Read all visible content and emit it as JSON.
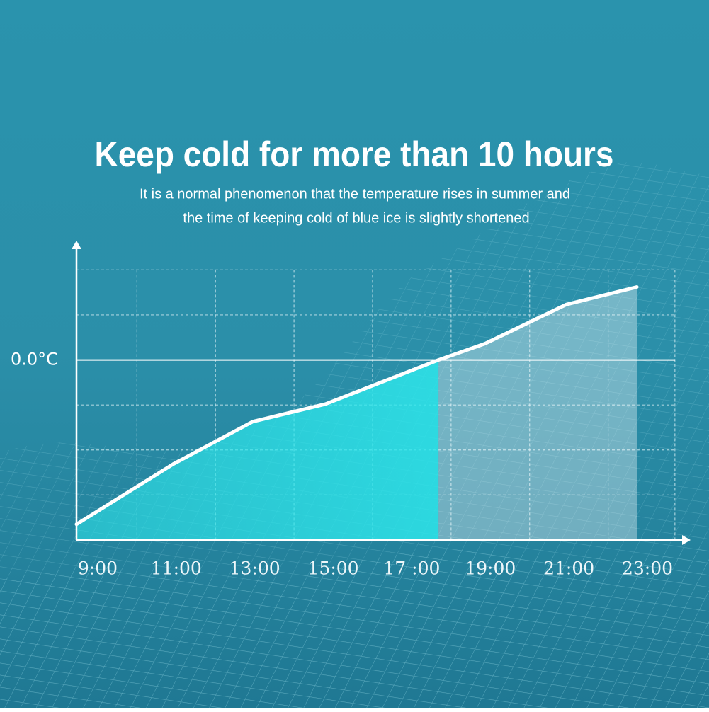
{
  "chart_data": {
    "type": "line",
    "title": "Keep cold for more than 10 hours",
    "subtitle": [
      "It is a normal phenomenon that the temperature rises in summer and",
      "the time of keeping cold of blue ice is slightly shortened"
    ],
    "x": [
      8.46,
      10.93,
      12.95,
      14.8,
      17.68,
      18.86,
      20.93,
      22.73
    ],
    "values": [
      -3.65,
      -2.31,
      -1.37,
      -0.98,
      0,
      0.36,
      1.23,
      1.62
    ],
    "color": "#ffffff",
    "fill_below": "#2ee8ec",
    "fill_above": "#ffffff",
    "xlim": [
      8.46,
      24.1
    ],
    "ylim": [
      -4,
      2.65
    ],
    "xticks": [
      {
        "value": 9,
        "label": "9:00"
      },
      {
        "value": 11,
        "label": "11:00"
      },
      {
        "value": 13,
        "label": "13:00"
      },
      {
        "value": 15,
        "label": "15:00"
      },
      {
        "value": 17,
        "label": "17 :00"
      },
      {
        "value": 19,
        "label": "19:00"
      },
      {
        "value": 21,
        "label": "21:00"
      },
      {
        "value": 23,
        "label": "23:00"
      }
    ],
    "yticks": [
      {
        "value": 0,
        "label": "0.0°C"
      }
    ],
    "xgrid": [
      10,
      12,
      14,
      16,
      18,
      20,
      22,
      23.7
    ],
    "ygrid": [
      -3,
      -2,
      -1,
      1,
      2
    ]
  }
}
